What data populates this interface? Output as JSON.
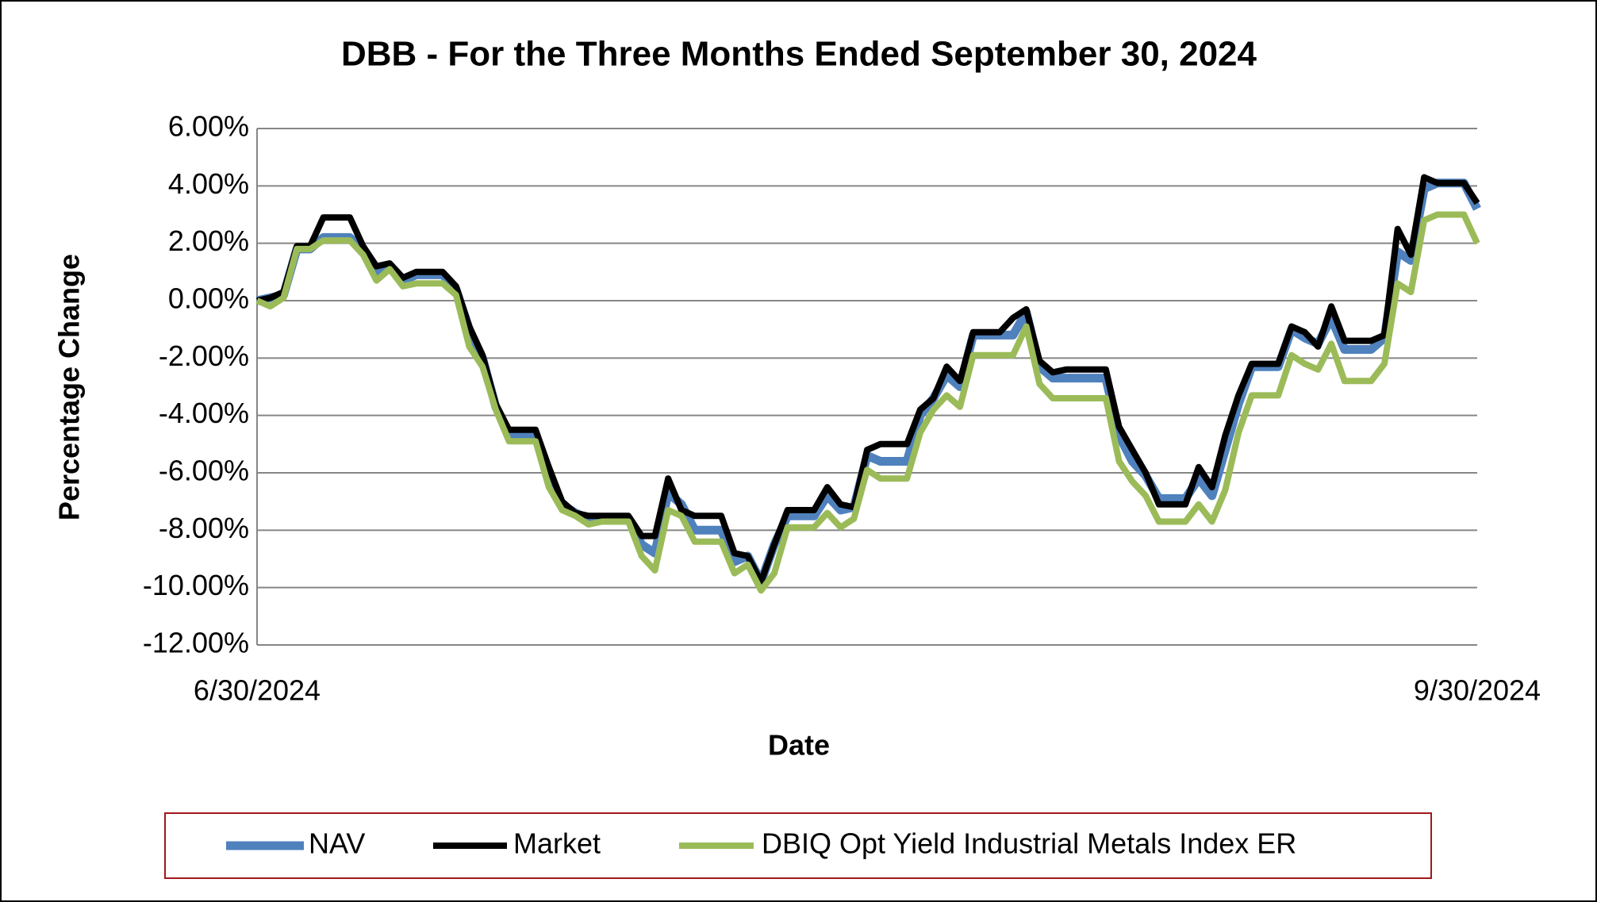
{
  "chart_data": {
    "type": "line",
    "title": "DBB - For the Three Months Ended September 30, 2024",
    "xlabel": "Date",
    "ylabel": "Percentage Change",
    "categories": [
      "6/30/2024",
      null,
      null,
      null,
      null,
      null,
      null,
      null,
      null,
      null,
      null,
      null,
      null,
      null,
      null,
      null,
      null,
      null,
      null,
      null,
      null,
      null,
      null,
      null,
      null,
      null,
      null,
      null,
      null,
      null,
      null,
      null,
      null,
      null,
      null,
      null,
      null,
      null,
      null,
      null,
      null,
      null,
      null,
      null,
      null,
      null,
      null,
      null,
      null,
      null,
      null,
      null,
      null,
      null,
      null,
      null,
      null,
      null,
      null,
      null,
      null,
      null,
      null,
      null,
      null,
      null,
      null,
      null,
      null,
      null,
      null,
      null,
      null,
      null,
      null,
      null,
      null,
      null,
      null,
      null,
      null,
      null,
      null,
      null,
      null,
      null,
      null,
      null,
      null,
      null,
      null,
      null,
      "9/30/2024"
    ],
    "series": [
      {
        "name": "NAV",
        "color": "#4f81bd",
        "values": [
          0.0,
          0.1,
          0.2,
          1.8,
          1.8,
          2.2,
          2.2,
          2.2,
          1.8,
          1.0,
          1.2,
          0.7,
          0.9,
          0.9,
          0.9,
          0.4,
          -1.0,
          -2.0,
          -3.7,
          -4.7,
          -4.7,
          -4.7,
          -6.0,
          -7.1,
          -7.4,
          -7.6,
          -7.6,
          -7.6,
          -7.6,
          -8.5,
          -8.8,
          -6.7,
          -7.1,
          -8.0,
          -8.0,
          -8.0,
          -9.1,
          -8.9,
          -9.8,
          -8.5,
          -7.5,
          -7.5,
          -7.5,
          -6.8,
          -7.3,
          -7.2,
          -5.4,
          -5.6,
          -5.6,
          -5.6,
          -4.0,
          -3.4,
          -2.6,
          -3.0,
          -1.2,
          -1.2,
          -1.2,
          -1.2,
          -0.4,
          -2.3,
          -2.7,
          -2.7,
          -2.7,
          -2.7,
          -2.7,
          -4.7,
          -5.6,
          -6.1,
          -6.9,
          -6.9,
          -6.9,
          -6.2,
          -6.8,
          -5.2,
          -3.6,
          -2.3,
          -2.3,
          -2.3,
          -1.0,
          -1.3,
          -1.5,
          -0.6,
          -1.7,
          -1.7,
          -1.7,
          -1.3,
          1.7,
          1.4,
          3.9,
          4.1,
          4.1,
          4.1,
          3.2
        ]
      },
      {
        "name": "Market",
        "color": "#000000",
        "values": [
          0.0,
          0.1,
          0.3,
          1.9,
          1.9,
          2.9,
          2.9,
          2.9,
          1.9,
          1.2,
          1.3,
          0.8,
          1.0,
          1.0,
          1.0,
          0.5,
          -0.9,
          -1.9,
          -3.6,
          -4.5,
          -4.5,
          -4.5,
          -5.8,
          -7.0,
          -7.4,
          -7.5,
          -7.5,
          -7.5,
          -7.5,
          -8.2,
          -8.2,
          -6.2,
          -7.3,
          -7.5,
          -7.5,
          -7.5,
          -8.8,
          -8.9,
          -9.8,
          -8.5,
          -7.3,
          -7.3,
          -7.3,
          -6.5,
          -7.1,
          -7.2,
          -5.2,
          -5.0,
          -5.0,
          -5.0,
          -3.8,
          -3.4,
          -2.3,
          -2.8,
          -1.1,
          -1.1,
          -1.1,
          -0.6,
          -0.3,
          -2.1,
          -2.5,
          -2.4,
          -2.4,
          -2.4,
          -2.4,
          -4.4,
          -5.2,
          -6.0,
          -7.1,
          -7.1,
          -7.1,
          -5.8,
          -6.5,
          -4.7,
          -3.3,
          -2.2,
          -2.2,
          -2.2,
          -0.9,
          -1.1,
          -1.6,
          -0.2,
          -1.4,
          -1.4,
          -1.4,
          -1.2,
          2.5,
          1.6,
          4.3,
          4.1,
          4.1,
          4.1,
          3.4
        ]
      },
      {
        "name": "DBIQ Opt Yield Industrial Metals Index ER",
        "color": "#9bbb59",
        "values": [
          0.0,
          -0.2,
          0.1,
          1.8,
          1.8,
          2.1,
          2.1,
          2.1,
          1.6,
          0.7,
          1.1,
          0.5,
          0.6,
          0.6,
          0.6,
          0.2,
          -1.6,
          -2.3,
          -3.8,
          -4.9,
          -4.9,
          -4.9,
          -6.5,
          -7.3,
          -7.5,
          -7.8,
          -7.7,
          -7.7,
          -7.7,
          -8.9,
          -9.4,
          -7.3,
          -7.5,
          -8.4,
          -8.4,
          -8.4,
          -9.5,
          -9.2,
          -10.1,
          -9.5,
          -7.9,
          -7.9,
          -7.9,
          -7.4,
          -7.9,
          -7.6,
          -5.9,
          -6.2,
          -6.2,
          -6.2,
          -4.6,
          -3.8,
          -3.3,
          -3.7,
          -1.9,
          -1.9,
          -1.9,
          -1.9,
          -0.9,
          -2.9,
          -3.4,
          -3.4,
          -3.4,
          -3.4,
          -3.4,
          -5.6,
          -6.3,
          -6.8,
          -7.7,
          -7.7,
          -7.7,
          -7.1,
          -7.7,
          -6.6,
          -4.6,
          -3.3,
          -3.3,
          -3.3,
          -1.9,
          -2.2,
          -2.4,
          -1.5,
          -2.8,
          -2.8,
          -2.8,
          -2.2,
          0.6,
          0.3,
          2.8,
          3.0,
          3.0,
          3.0,
          2.0
        ]
      }
    ],
    "ylim": [
      -12,
      6
    ],
    "yticks": [
      {
        "value": -12,
        "label": "-12.00%"
      },
      {
        "value": -10,
        "label": "-10.00%"
      },
      {
        "value": -8,
        "label": "-8.00%"
      },
      {
        "value": -6,
        "label": "-6.00%"
      },
      {
        "value": -4,
        "label": "-4.00%"
      },
      {
        "value": -2,
        "label": "-2.00%"
      },
      {
        "value": 0,
        "label": "0.00%"
      },
      {
        "value": 2,
        "label": "2.00%"
      },
      {
        "value": 4,
        "label": "4.00%"
      },
      {
        "value": 6,
        "label": "6.00%"
      }
    ],
    "grid": true,
    "legend": "bottom"
  }
}
